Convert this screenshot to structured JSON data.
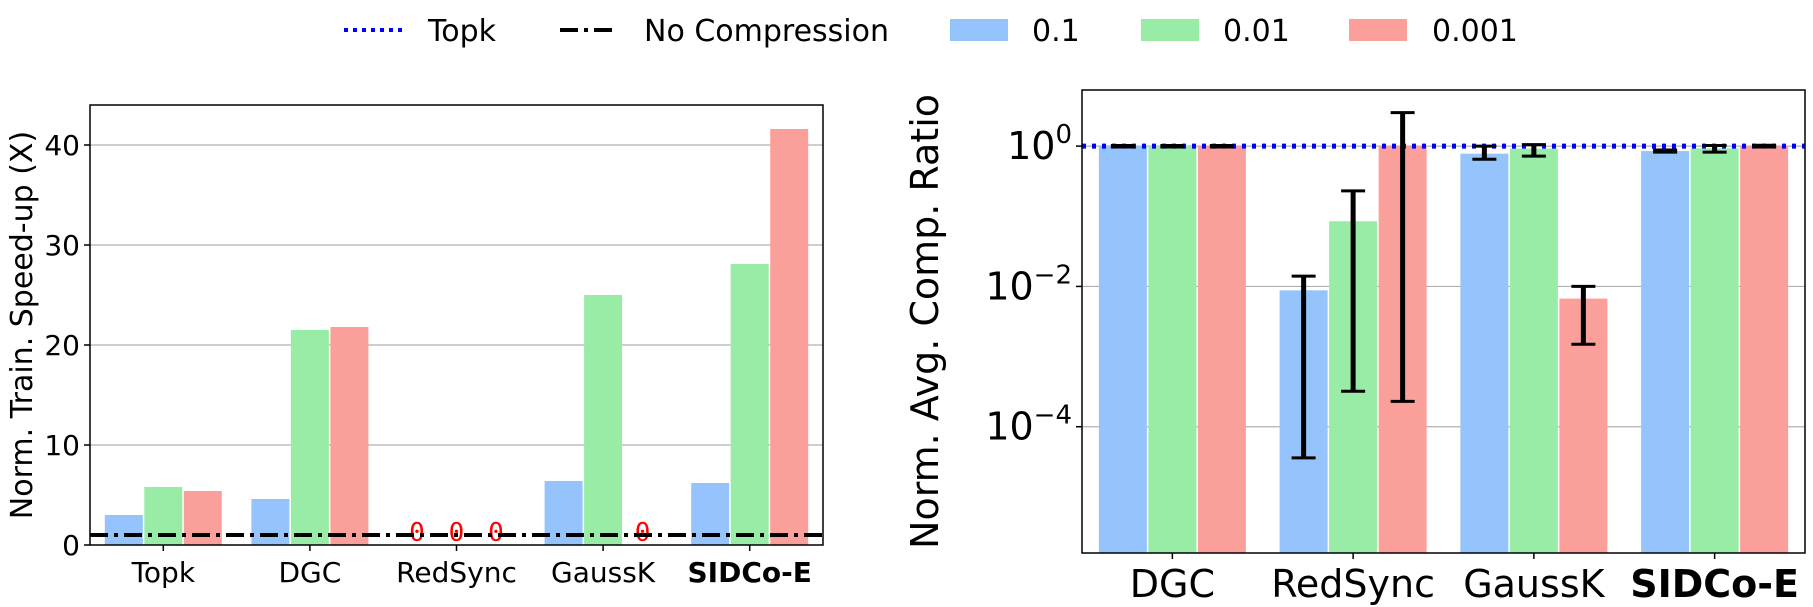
{
  "colors": {
    "s01": "#94c4fb",
    "s001": "#98eca5",
    "s0001": "#fb9f9a",
    "topk_line": "#0000ff",
    "nocomp_line": "#000000",
    "highlight": "#ff0000",
    "grid": "#b0b0b0"
  },
  "legend": {
    "items": [
      {
        "label": "Topk",
        "kind": "dotted-line",
        "color": "#0000ff"
      },
      {
        "label": "No Compression",
        "kind": "dashdot-line",
        "color": "#000000"
      },
      {
        "label": "0.1",
        "kind": "patch",
        "color": "#94c4fb"
      },
      {
        "label": "0.01",
        "kind": "patch",
        "color": "#98eca5"
      },
      {
        "label": "0.001",
        "kind": "patch",
        "color": "#fb9f9a"
      }
    ]
  },
  "chart_data": [
    {
      "type": "bar",
      "title": "",
      "xlabel": "",
      "ylabel": "Norm. Train. Speed-up (X)",
      "ylim": [
        0,
        44
      ],
      "yticks": [
        0,
        10,
        20,
        30,
        40
      ],
      "grid": "y",
      "categories": [
        "Topk",
        "DGC",
        "RedSync",
        "GaussK",
        "SIDCo-E"
      ],
      "highlight_category": "SIDCo-E",
      "series": [
        {
          "name": "0.1",
          "values": [
            3.0,
            4.6,
            0,
            6.4,
            6.2
          ]
        },
        {
          "name": "0.01",
          "values": [
            5.8,
            21.5,
            0,
            25.0,
            28.1
          ]
        },
        {
          "name": "0.001",
          "values": [
            5.4,
            21.8,
            0,
            0,
            41.6
          ]
        }
      ],
      "zero_labels": [
        {
          "category": "RedSync",
          "series": "0.1",
          "text": "0"
        },
        {
          "category": "RedSync",
          "series": "0.01",
          "text": "0"
        },
        {
          "category": "RedSync",
          "series": "0.001",
          "text": "0"
        },
        {
          "category": "GaussK",
          "series": "0.001",
          "text": "0"
        }
      ],
      "reference_lines": [
        {
          "name": "No Compression",
          "y": 1.0,
          "style": "dashdot"
        }
      ]
    },
    {
      "type": "bar",
      "title": "",
      "xlabel": "",
      "ylabel": "Norm. Avg. Comp. Ratio",
      "yscale": "log",
      "ylim_log10": [
        -5.8,
        0.8
      ],
      "yticks": [
        {
          "exp": 0,
          "base": "10",
          "sup": "0"
        },
        {
          "exp": -2,
          "base": "10",
          "sup": "−2"
        },
        {
          "exp": -4,
          "base": "10",
          "sup": "−4"
        }
      ],
      "grid": "y",
      "categories": [
        "DGC",
        "RedSync",
        "GaussK",
        "SIDCo-E"
      ],
      "highlight_category": "SIDCo-E",
      "series": [
        {
          "name": "0.1",
          "values": [
            1.0,
            0.0088,
            0.78,
            0.85
          ],
          "err_low": [
            0.97,
            3.6e-05,
            0.65,
            0.82
          ],
          "err_high": [
            1.02,
            0.014,
            1.0,
            0.88
          ]
        },
        {
          "name": "0.01",
          "values": [
            1.0,
            0.085,
            0.92,
            0.93
          ],
          "err_low": [
            0.97,
            0.00032,
            0.72,
            0.82
          ],
          "err_high": [
            1.02,
            0.23,
            1.05,
            1.02
          ]
        },
        {
          "name": "0.001",
          "values": [
            1.0,
            1.0,
            0.0067,
            1.0
          ],
          "err_low": [
            0.97,
            0.00023,
            0.0015,
            0.97
          ],
          "err_high": [
            1.02,
            3.0,
            0.01,
            1.03
          ]
        }
      ],
      "reference_lines": [
        {
          "name": "Topk",
          "y": 1.0,
          "style": "dotted"
        }
      ]
    }
  ]
}
